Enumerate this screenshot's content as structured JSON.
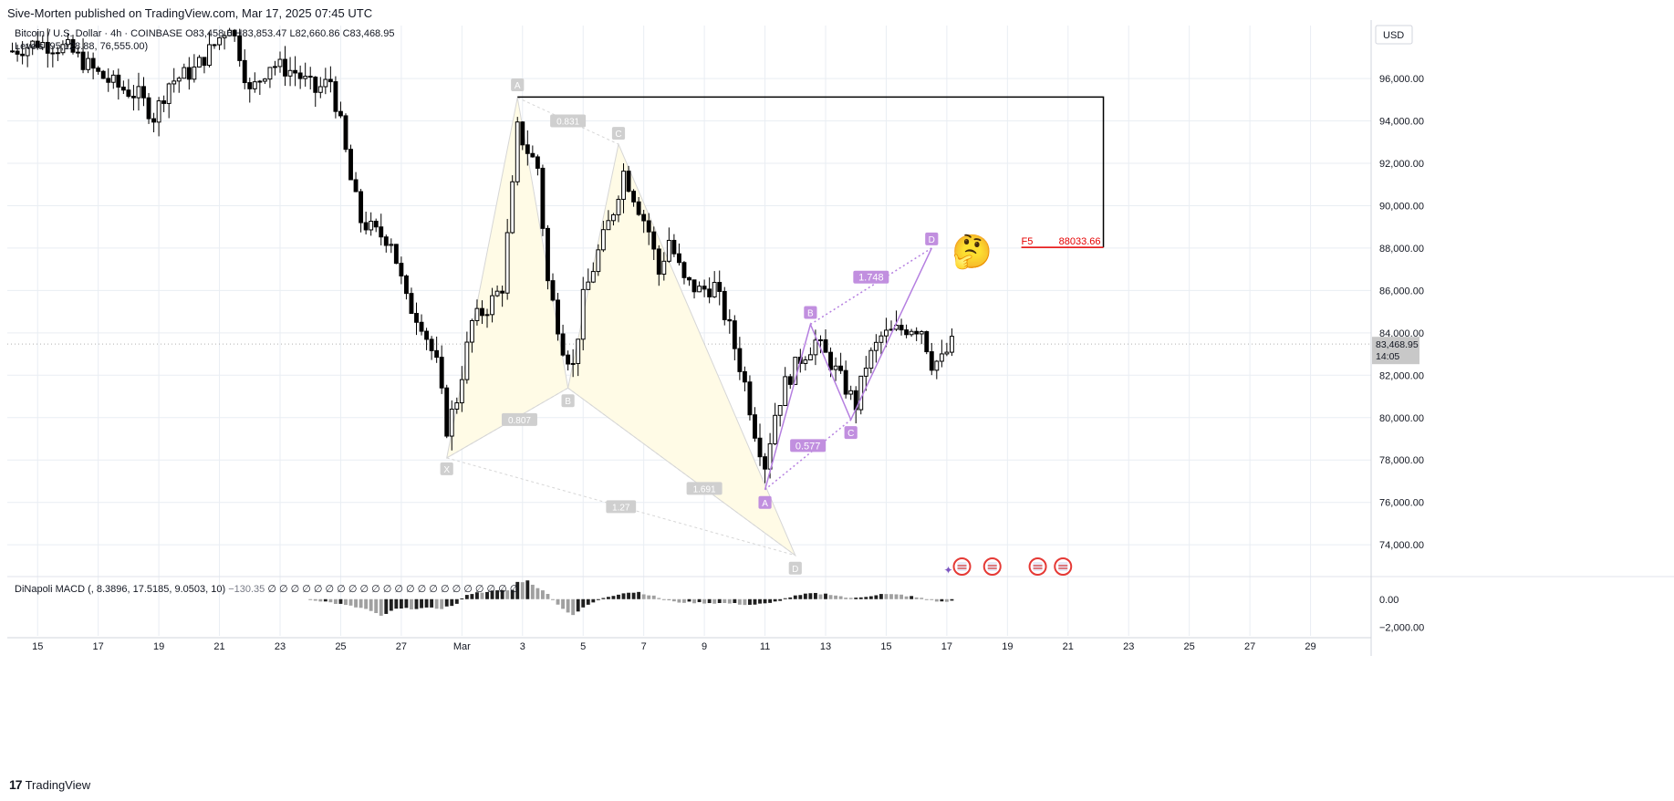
{
  "header": {
    "publisher": "Sive-Morten published on TradingView.com, Mar 17, 2025 07:45 UTC"
  },
  "brand": {
    "logo_text": "17",
    "name": "TradingView"
  },
  "currency_label": "USD",
  "colors": {
    "up_fill": "#ffffff",
    "down_fill": "#000000",
    "candle_outline": "#000000",
    "pattern_fill": "#fffbe6",
    "pattern_line": "#d6d6d6",
    "pattern_label_bg": "#cfcfcf",
    "abcd": "#b57fe0",
    "abcd_label_bg": "#c18fdf",
    "target": "#e60000",
    "box": "#000000",
    "grid": "#e9eef3",
    "macd_pos": "#1f1f1f",
    "macd_neg": "#a0a0a0"
  },
  "chart_data": {
    "type": "candlestick",
    "symbol_line": "Bitcoin / U.S. Dollar · 4h · COINBASE",
    "ohlc": {
      "o_label": "O",
      "o": "83,458.6",
      "h_label": "H",
      "h": "83,853.47",
      "l_label": "L",
      "l": "82,660.86",
      "c_label": "C",
      "c": "83,468.95"
    },
    "levels_label": "Levels (95,128.88, 76,555.00)",
    "ylim": [
      72500,
      98500
    ],
    "x_date_range": [
      "2025-02-14",
      "2025-03-31"
    ],
    "y_ticks": [
      "74,000.00",
      "76,000.00",
      "78,000.00",
      "80,000.00",
      "82,000.00",
      "84,000.00",
      "86,000.00",
      "88,000.00",
      "90,000.00",
      "92,000.00",
      "94,000.00",
      "96,000.00"
    ],
    "y_tick_values": [
      74000,
      76000,
      78000,
      80000,
      82000,
      84000,
      86000,
      88000,
      90000,
      92000,
      94000,
      96000
    ],
    "x_ticks": [
      "15",
      "17",
      "19",
      "21",
      "23",
      "25",
      "27",
      "Mar",
      "3",
      "5",
      "7",
      "9",
      "11",
      "13",
      "15",
      "17",
      "19",
      "21",
      "23",
      "25",
      "27",
      "29"
    ],
    "x_tick_dates": [
      "2025-02-15",
      "2025-02-17",
      "2025-02-19",
      "2025-02-21",
      "2025-02-23",
      "2025-02-25",
      "2025-02-27",
      "2025-03-01",
      "2025-03-03",
      "2025-03-05",
      "2025-03-07",
      "2025-03-09",
      "2025-03-11",
      "2025-03-13",
      "2025-03-15",
      "2025-03-17",
      "2025-03-19",
      "2025-03-21",
      "2025-03-23",
      "2025-03-25",
      "2025-03-27",
      "2025-03-29"
    ],
    "last_price": {
      "value": 83468.95,
      "label": "83,468.95",
      "countdown": "14:05"
    },
    "close_path": [
      [
        "2025-02-14T04:00",
        97300
      ],
      [
        "2025-02-15T00:00",
        97700
      ],
      [
        "2025-02-16T00:00",
        97400
      ],
      [
        "2025-02-17T00:00",
        96200
      ],
      [
        "2025-02-17T16:00",
        95600
      ],
      [
        "2025-02-18T08:00",
        95200
      ],
      [
        "2025-02-18T20:00",
        94200
      ],
      [
        "2025-02-19T08:00",
        95800
      ],
      [
        "2025-02-20T04:00",
        96400
      ],
      [
        "2025-02-20T20:00",
        97600
      ],
      [
        "2025-02-21T08:00",
        98600
      ],
      [
        "2025-02-21T16:00",
        97200
      ],
      [
        "2025-02-22T00:00",
        95300
      ],
      [
        "2025-02-22T16:00",
        96700
      ],
      [
        "2025-02-23T12:00",
        96300
      ],
      [
        "2025-02-24T04:00",
        95400
      ],
      [
        "2025-02-24T16:00",
        95900
      ],
      [
        "2025-02-25T00:00",
        93800
      ],
      [
        "2025-02-25T08:00",
        91200
      ],
      [
        "2025-02-25T16:00",
        89300
      ],
      [
        "2025-02-26T04:00",
        88700
      ],
      [
        "2025-02-26T16:00",
        88400
      ],
      [
        "2025-02-27T04:00",
        85500
      ],
      [
        "2025-02-27T16:00",
        84500
      ],
      [
        "2025-02-28T04:00",
        82500
      ],
      [
        "2025-02-28T12:00",
        79500
      ],
      [
        "2025-02-28T20:00",
        80900
      ],
      [
        "2025-03-01T08:00",
        84500
      ],
      [
        "2025-03-01T20:00",
        85200
      ],
      [
        "2025-03-02T08:00",
        86200
      ],
      [
        "2025-03-02T16:00",
        90800
      ],
      [
        "2025-03-02T20:00",
        93600
      ],
      [
        "2025-03-03T04:00",
        92600
      ],
      [
        "2025-03-03T12:00",
        91800
      ],
      [
        "2025-03-03T20:00",
        86400
      ],
      [
        "2025-03-04T08:00",
        83400
      ],
      [
        "2025-03-04T16:00",
        82400
      ],
      [
        "2025-03-05T00:00",
        85600
      ],
      [
        "2025-03-05T12:00",
        87800
      ],
      [
        "2025-03-06T00:00",
        89800
      ],
      [
        "2025-03-06T08:00",
        91600
      ],
      [
        "2025-03-06T16:00",
        90500
      ],
      [
        "2025-03-07T04:00",
        88800
      ],
      [
        "2025-03-07T12:00",
        86800
      ],
      [
        "2025-03-07T20:00",
        88400
      ],
      [
        "2025-03-08T08:00",
        86400
      ],
      [
        "2025-03-08T20:00",
        86000
      ],
      [
        "2025-03-09T08:00",
        86200
      ],
      [
        "2025-03-09T20:00",
        84200
      ],
      [
        "2025-03-10T08:00",
        81600
      ],
      [
        "2025-03-10T16:00",
        79400
      ],
      [
        "2025-03-11T00:00",
        77800
      ],
      [
        "2025-03-11T08:00",
        80200
      ],
      [
        "2025-03-11T16:00",
        81600
      ],
      [
        "2025-03-12T04:00",
        82800
      ],
      [
        "2025-03-12T16:00",
        83600
      ],
      [
        "2025-03-13T04:00",
        82600
      ],
      [
        "2025-03-13T16:00",
        81400
      ],
      [
        "2025-03-14T00:00",
        80600
      ],
      [
        "2025-03-14T08:00",
        82500
      ],
      [
        "2025-03-14T20:00",
        83800
      ],
      [
        "2025-03-15T08:00",
        84100
      ],
      [
        "2025-03-15T20:00",
        84300
      ],
      [
        "2025-03-16T04:00",
        84200
      ],
      [
        "2025-03-16T12:00",
        82600
      ],
      [
        "2025-03-16T20:00",
        82700
      ],
      [
        "2025-03-17T04:00",
        83469
      ]
    ],
    "xabcd_pattern": {
      "points": [
        {
          "label": "X",
          "date": "2025-02-28T12:00",
          "price": 78100
        },
        {
          "label": "A",
          "date": "2025-03-02T20:00",
          "price": 95100
        },
        {
          "label": "B",
          "date": "2025-03-04T12:00",
          "price": 81400
        },
        {
          "label": "C",
          "date": "2025-03-06T04:00",
          "price": 92900
        },
        {
          "label": "D",
          "date": "2025-03-12T00:00",
          "price": 73500
        }
      ],
      "ratios": [
        "0.831",
        "0.807",
        "1.691",
        "1.27"
      ]
    },
    "abcd_pattern": {
      "points": [
        {
          "label": "A",
          "date": "2025-03-11T00:00",
          "price": 76600
        },
        {
          "label": "B",
          "date": "2025-03-12T12:00",
          "price": 84400
        },
        {
          "label": "C",
          "date": "2025-03-13T20:00",
          "price": 79900
        },
        {
          "label": "D",
          "date": "2025-03-16T12:00",
          "price": 88000
        }
      ],
      "ratios": [
        "0.577",
        "1.748"
      ]
    },
    "target": {
      "label": "F5",
      "value": "88033.66",
      "price": 88033.66
    },
    "box": {
      "top_price": 95128.88,
      "bottom_price": 88033.66,
      "start": "2025-03-02T20:00",
      "end": "2025-03-22T04:00"
    },
    "event_icons_dates": [
      "2025-03-17T12:00",
      "2025-03-18T12:00",
      "2025-03-20T00:00",
      "2025-03-20T20:00"
    ],
    "macd": {
      "label": "DiNapoli MACD",
      "params": "(, 8.3896, 17.5185, 9.0503, 10)",
      "value": "−130.35",
      "extra_values": [
        "∅",
        "∅",
        "∅",
        "∅",
        "∅",
        "∅",
        "∅",
        "∅",
        "∅",
        "∅",
        "∅",
        "∅",
        "∅",
        "∅",
        "∅",
        "∅",
        "∅",
        "∅",
        "∅",
        "∅",
        "∅",
        "∅"
      ],
      "y_ticks": [
        "0.00",
        "−2,000.00"
      ],
      "y_tick_values": [
        0,
        -2000
      ],
      "ylim": [
        -2600,
        1600
      ],
      "hist_path": [
        [
          "2025-02-24T00:00",
          0
        ],
        [
          "2025-02-24T20:00",
          -300
        ],
        [
          "2025-02-25T20:00",
          -700
        ],
        [
          "2025-02-26T08:00",
          -1200
        ],
        [
          "2025-02-26T20:00",
          -700
        ],
        [
          "2025-02-27T12:00",
          -650
        ],
        [
          "2025-02-28T08:00",
          -650
        ],
        [
          "2025-02-28T20:00",
          -350
        ],
        [
          "2025-03-01T04:00",
          350
        ],
        [
          "2025-03-01T20:00",
          550
        ],
        [
          "2025-03-02T16:00",
          650
        ],
        [
          "2025-03-02T20:00",
          1200
        ],
        [
          "2025-03-03T04:00",
          1300
        ],
        [
          "2025-03-03T20:00",
          350
        ],
        [
          "2025-03-04T08:00",
          -700
        ],
        [
          "2025-03-04T16:00",
          -1100
        ],
        [
          "2025-03-05T04:00",
          -400
        ],
        [
          "2025-03-05T16:00",
          100
        ],
        [
          "2025-03-06T08:00",
          450
        ],
        [
          "2025-03-06T20:00",
          500
        ],
        [
          "2025-03-07T08:00",
          200
        ],
        [
          "2025-03-08T00:00",
          -200
        ],
        [
          "2025-03-08T20:00",
          -250
        ],
        [
          "2025-03-09T20:00",
          -300
        ],
        [
          "2025-03-10T12:00",
          -400
        ],
        [
          "2025-03-11T04:00",
          -300
        ],
        [
          "2025-03-11T20:00",
          150
        ],
        [
          "2025-03-12T12:00",
          400
        ],
        [
          "2025-03-13T04:00",
          350
        ],
        [
          "2025-03-13T20:00",
          50
        ],
        [
          "2025-03-14T08:00",
          200
        ],
        [
          "2025-03-14T20:00",
          350
        ],
        [
          "2025-03-15T12:00",
          300
        ],
        [
          "2025-03-16T08:00",
          0
        ],
        [
          "2025-03-16T20:00",
          -200
        ],
        [
          "2025-03-17T04:00",
          -130
        ]
      ]
    }
  },
  "emoji": "🤔"
}
